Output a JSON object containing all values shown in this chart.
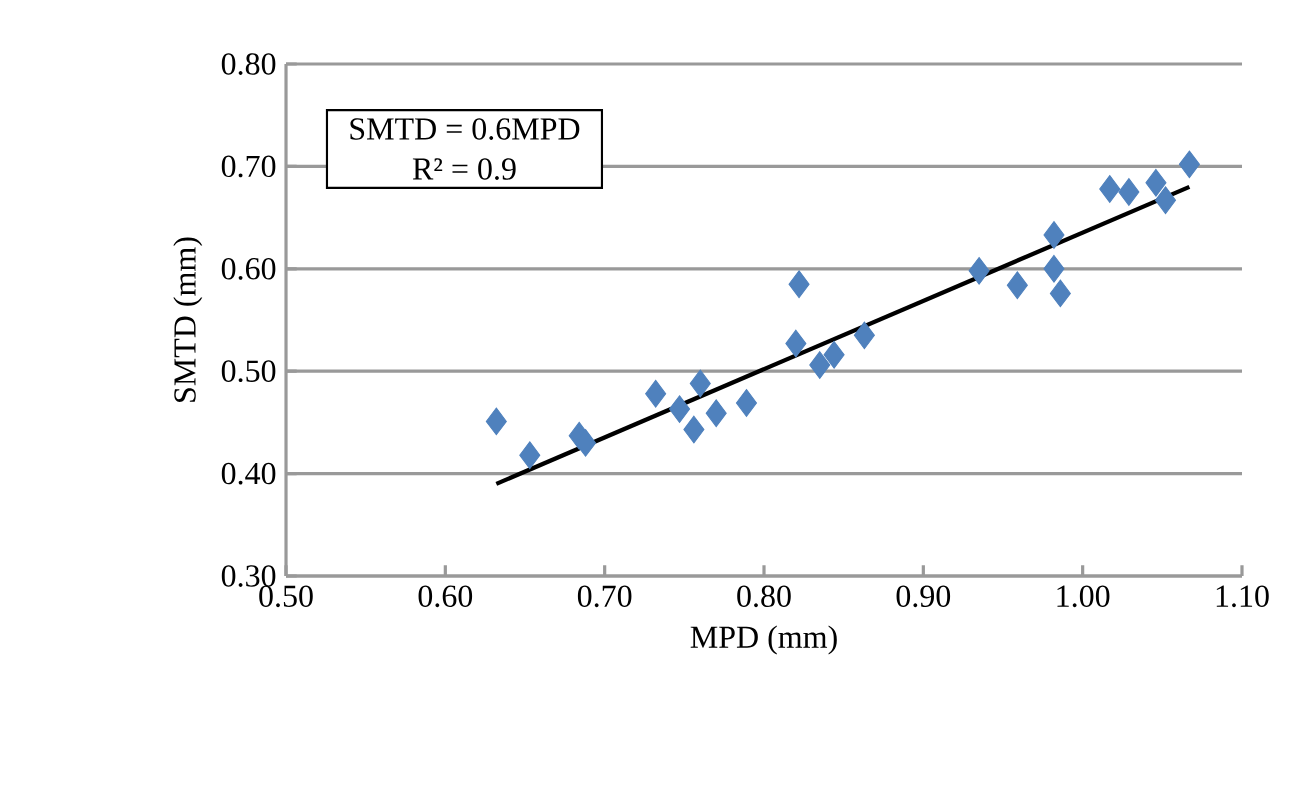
{
  "chart_data": {
    "type": "scatter",
    "xlabel": "MPD (mm)",
    "ylabel": "SMTD (mm)",
    "marker": "diamond",
    "grid": "y",
    "xlim": [
      0.5,
      1.1
    ],
    "ylim": [
      0.3,
      0.8
    ],
    "xticks": [
      {
        "value": 0.5,
        "label": "0.50"
      },
      {
        "value": 0.6,
        "label": "0.60"
      },
      {
        "value": 0.7,
        "label": "0.70"
      },
      {
        "value": 0.8,
        "label": "0.80"
      },
      {
        "value": 0.9,
        "label": "0.90"
      },
      {
        "value": 1.0,
        "label": "1.00"
      },
      {
        "value": 1.1,
        "label": "1.10"
      }
    ],
    "yticks": [
      {
        "value": 0.3,
        "label": "0.30"
      },
      {
        "value": 0.4,
        "label": "0.40"
      },
      {
        "value": 0.5,
        "label": "0.50"
      },
      {
        "value": 0.6,
        "label": "0.60"
      },
      {
        "value": 0.7,
        "label": "0.70"
      },
      {
        "value": 0.8,
        "label": "0.80"
      }
    ],
    "series": [
      {
        "color": "#4f81bd",
        "x": [
          0.632,
          0.653,
          0.684,
          0.688,
          0.732,
          0.747,
          0.76,
          0.756,
          0.77,
          0.789,
          0.82,
          0.822,
          0.835,
          0.844,
          0.863,
          0.935,
          0.959,
          0.982,
          0.982,
          0.986,
          1.017,
          1.029,
          1.046,
          1.052,
          1.067
        ],
        "values": [
          0.451,
          0.418,
          0.437,
          0.43,
          0.478,
          0.463,
          0.488,
          0.443,
          0.459,
          0.469,
          0.527,
          0.585,
          0.506,
          0.516,
          0.535,
          0.598,
          0.584,
          0.633,
          0.6,
          0.576,
          0.678,
          0.675,
          0.684,
          0.667,
          0.702
        ]
      },
      {
        "type": "line",
        "color": "#000000",
        "marker": "none",
        "x": [
          0.632,
          1.067
        ],
        "values": [
          0.39,
          0.68
        ]
      }
    ],
    "annotations": [
      "SMTD = 0.6MPD",
      "R² = 0.9"
    ]
  }
}
